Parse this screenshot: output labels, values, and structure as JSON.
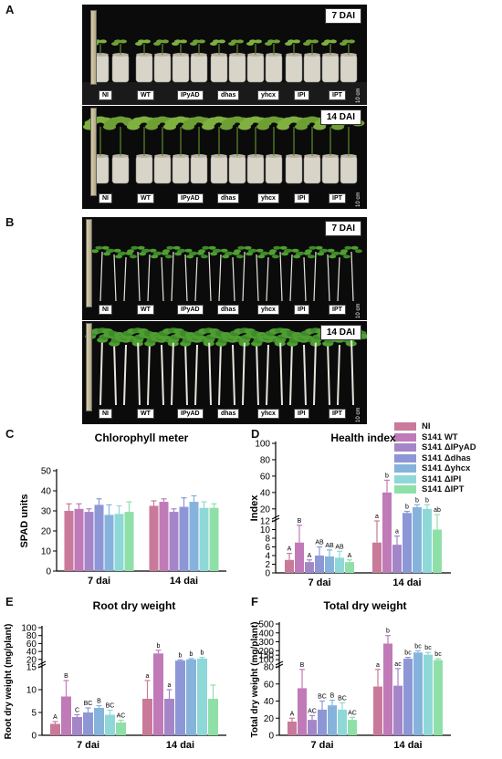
{
  "panels": {
    "A": "A",
    "B": "B",
    "C": "C",
    "D": "D",
    "E": "E",
    "F": "F"
  },
  "photos": {
    "a_top": {
      "dai": "7 DAI",
      "scale": "10 cm"
    },
    "a_bottom": {
      "dai": "14 DAI",
      "scale": "10 cm"
    },
    "b_top": {
      "dai": "7 DAI",
      "scale": "10 cm"
    },
    "b_bottom": {
      "dai": "14 DAI",
      "scale": "10 cm"
    },
    "treatment_tags": [
      "NI",
      "WT",
      "IPyAD",
      "dhas",
      "yhcx",
      "IPI",
      "IPT"
    ]
  },
  "legend": {
    "items": [
      {
        "label": "NI",
        "color": "#c97a9a"
      },
      {
        "label": "S141 WT",
        "color": "#c07ab8"
      },
      {
        "label": "S141 ΔIPyAD",
        "color": "#a486c8"
      },
      {
        "label": "S141 Δdhas",
        "color": "#8d97d6"
      },
      {
        "label": "S141 Δyhcx",
        "color": "#86b3dc"
      },
      {
        "label": "S141 ΔIPI",
        "color": "#8fd8d8"
      },
      {
        "label": "S141 ΔIPT",
        "color": "#8fe0a8"
      }
    ]
  },
  "chart_data": [
    {
      "id": "C",
      "type": "bar",
      "title": "Chlorophyll meter",
      "ylabel": "SPAD units",
      "xlabel": "",
      "categories": [
        "7 dai",
        "14 dai"
      ],
      "ylim": [
        0,
        50
      ],
      "yticks": [
        0,
        10,
        20,
        30,
        40,
        50
      ],
      "series": [
        {
          "name": "NI",
          "values": [
            30,
            32.5
          ],
          "errors": [
            3.5,
            2.5
          ]
        },
        {
          "name": "S141 WT",
          "values": [
            31,
            34.5
          ],
          "errors": [
            2.5,
            1.5
          ]
        },
        {
          "name": "S141 ΔIPyAD",
          "values": [
            29.5,
            29.5
          ],
          "errors": [
            1.5,
            1.5
          ]
        },
        {
          "name": "S141 Δdhas",
          "values": [
            33,
            32
          ],
          "errors": [
            3,
            4.5
          ]
        },
        {
          "name": "S141 Δyhcx",
          "values": [
            28,
            34.5
          ],
          "errors": [
            5,
            3
          ]
        },
        {
          "name": "S141 ΔIPI",
          "values": [
            28.5,
            31.5
          ],
          "errors": [
            4,
            3
          ]
        },
        {
          "name": "S141 ΔIPT",
          "values": [
            29.5,
            31.5
          ],
          "errors": [
            5,
            2
          ]
        }
      ],
      "letters": null
    },
    {
      "id": "D",
      "type": "bar",
      "title": "Health index",
      "ylabel": "Index",
      "xlabel": "",
      "categories": [
        "7 dai",
        "14 dai"
      ],
      "broken_axis": {
        "lower": [
          0,
          12
        ],
        "upper": [
          12,
          100
        ]
      },
      "yticks": [
        0,
        2,
        4,
        6,
        8,
        10,
        12,
        20,
        40,
        60,
        80,
        100
      ],
      "series": [
        {
          "name": "NI",
          "values": [
            3,
            7
          ],
          "errors": [
            1.5,
            5
          ]
        },
        {
          "name": "S141 WT",
          "values": [
            7,
            40
          ],
          "errors": [
            4,
            15
          ]
        },
        {
          "name": "S141 ΔIPyAD",
          "values": [
            2.5,
            6.5
          ],
          "errors": [
            0.5,
            2
          ]
        },
        {
          "name": "S141 Δdhas",
          "values": [
            4,
            15
          ],
          "errors": [
            2,
            2
          ]
        },
        {
          "name": "S141 Δyhcx",
          "values": [
            3.8,
            22
          ],
          "errors": [
            1.5,
            3
          ]
        },
        {
          "name": "S141 ΔIPI",
          "values": [
            3.5,
            20
          ],
          "errors": [
            1.5,
            5
          ]
        },
        {
          "name": "S141 ΔIPT",
          "values": [
            2.5,
            10
          ],
          "errors": [
            0.5,
            3
          ]
        }
      ],
      "letters": [
        [
          "A",
          "a"
        ],
        [
          "B",
          "b"
        ],
        [
          "A",
          "a"
        ],
        [
          "AB",
          "b"
        ],
        [
          "AB",
          "b"
        ],
        [
          "AB",
          "b"
        ],
        [
          "A",
          "ab"
        ]
      ]
    },
    {
      "id": "E",
      "type": "bar",
      "title": "Root dry weight",
      "ylabel": "Root dry weight (mg/plant)",
      "xlabel": "",
      "categories": [
        "7 dai",
        "14 dai"
      ],
      "broken_axis": {
        "lower": [
          0,
          15
        ],
        "upper": [
          15,
          100
        ]
      },
      "yticks": [
        0,
        5,
        10,
        15,
        20,
        40,
        60,
        80,
        100
      ],
      "series": [
        {
          "name": "NI",
          "values": [
            2.5,
            8
          ],
          "errors": [
            0.5,
            4
          ]
        },
        {
          "name": "S141 WT",
          "values": [
            8.5,
            35
          ],
          "errors": [
            3.5,
            8
          ]
        },
        {
          "name": "S141 ΔIPyAD",
          "values": [
            4,
            8
          ],
          "errors": [
            0.5,
            2
          ]
        },
        {
          "name": "S141 Δdhas",
          "values": [
            5,
            17
          ],
          "errors": [
            1,
            2
          ]
        },
        {
          "name": "S141 Δyhcx",
          "values": [
            6,
            20
          ],
          "errors": [
            0.5,
            2
          ]
        },
        {
          "name": "S141 ΔIPI",
          "values": [
            4.5,
            22
          ],
          "errors": [
            1,
            3
          ]
        },
        {
          "name": "S141 ΔIPT",
          "values": [
            2.8,
            8
          ],
          "errors": [
            0.5,
            3
          ]
        }
      ],
      "letters": [
        [
          "A",
          "a"
        ],
        [
          "B",
          "b"
        ],
        [
          "C",
          "a"
        ],
        [
          "BC",
          "b"
        ],
        [
          "B",
          "b"
        ],
        [
          "BC",
          "b"
        ],
        [
          "AC",
          ""
        ]
      ]
    },
    {
      "id": "F",
      "type": "bar",
      "title": "Total dry weight",
      "ylabel": "Total dry weight (mg/plant)",
      "xlabel": "",
      "categories": [
        "7 dai",
        "14 dai"
      ],
      "broken_axis": {
        "lower": [
          0,
          80
        ],
        "upper": [
          80,
          500
        ]
      },
      "yticks": [
        0,
        20,
        40,
        60,
        80,
        100,
        150,
        200,
        300,
        400,
        500
      ],
      "series": [
        {
          "name": "NI",
          "values": [
            16,
            57
          ],
          "errors": [
            4,
            20
          ]
        },
        {
          "name": "S141 WT",
          "values": [
            55,
            280
          ],
          "errors": [
            22,
            90
          ]
        },
        {
          "name": "S141 ΔIPyAD",
          "values": [
            18,
            58
          ],
          "errors": [
            5,
            20
          ]
        },
        {
          "name": "S141 Δdhas",
          "values": [
            30,
            110
          ],
          "errors": [
            10,
            15
          ]
        },
        {
          "name": "S141 Δyhcx",
          "values": [
            35,
            180
          ],
          "errors": [
            6,
            20
          ]
        },
        {
          "name": "S141 ΔIPI",
          "values": [
            30,
            155
          ],
          "errors": [
            8,
            25
          ]
        },
        {
          "name": "S141 ΔIPT",
          "values": [
            18,
            95
          ],
          "errors": [
            3,
            15
          ]
        }
      ],
      "letters": [
        [
          "A",
          "a"
        ],
        [
          "B",
          "b"
        ],
        [
          "AC",
          "ac"
        ],
        [
          "BC",
          "bc"
        ],
        [
          "B",
          "bc"
        ],
        [
          "BC",
          "bc"
        ],
        [
          "AC",
          "bc"
        ]
      ]
    }
  ]
}
